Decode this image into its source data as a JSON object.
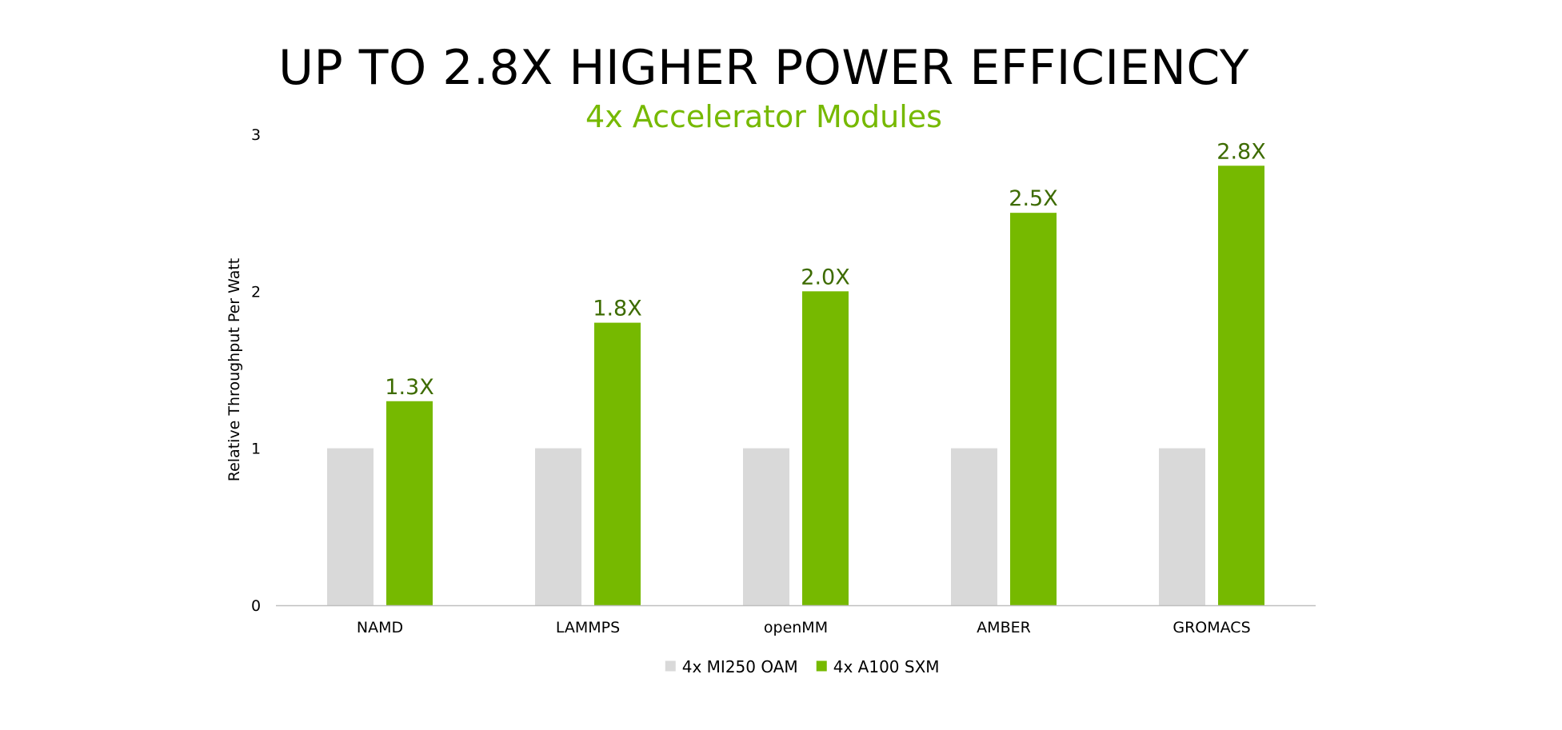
{
  "chart_data": {
    "type": "bar",
    "title": "UP TO 2.8X HIGHER POWER EFFICIENCY",
    "subtitle": "4x Accelerator Modules",
    "ylabel": "Relative Throughput Per Watt",
    "xlabel": "",
    "ylim": [
      0,
      3
    ],
    "yticks": [
      0,
      1,
      2,
      3
    ],
    "grid": false,
    "legend_position": "bottom",
    "categories": [
      "NAMD",
      "LAMMPS",
      "openMM",
      "AMBER",
      "GROMACS"
    ],
    "series": [
      {
        "name": "4x MI250 OAM",
        "color": "#d9d9d9",
        "values": [
          1,
          1,
          1,
          1,
          1
        ],
        "labels": [
          "",
          "",
          "",
          "",
          ""
        ]
      },
      {
        "name": "4x A100 SXM",
        "color": "#76b900",
        "values": [
          1.3,
          1.8,
          2.0,
          2.5,
          2.8
        ],
        "labels": [
          "1.3X",
          "1.8X",
          "2.0X",
          "2.5X",
          "2.8X"
        ]
      }
    ],
    "data_label_color": "#3d6b00"
  }
}
